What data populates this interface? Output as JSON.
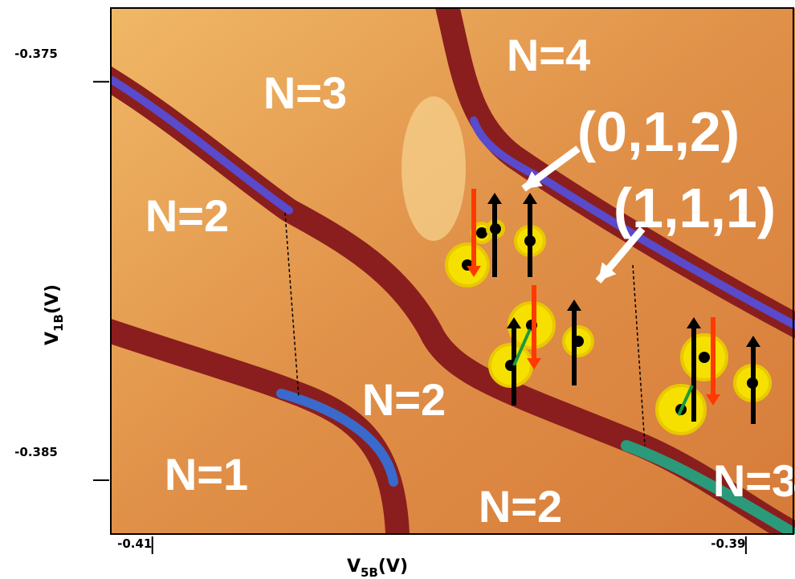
{
  "chart_data": {
    "type": "image",
    "x_label": [
      "V",
      "5B",
      "(V)"
    ],
    "y_label": [
      "V",
      "1B",
      "(V)"
    ],
    "xlim": [
      -0.4114,
      -0.3884
    ],
    "xticks": [
      -0.41,
      -0.39
    ],
    "ylim": [
      -0.38635,
      -0.37315
    ],
    "yticks": [
      -0.375,
      -0.385
    ],
    "region_labels": [
      "N=3",
      "N=4",
      "N=2",
      "N=2",
      "N=1",
      "N=2",
      "N=3"
    ],
    "annotations": [
      "(0,1,2)",
      "(1,1,1)"
    ]
  }
}
